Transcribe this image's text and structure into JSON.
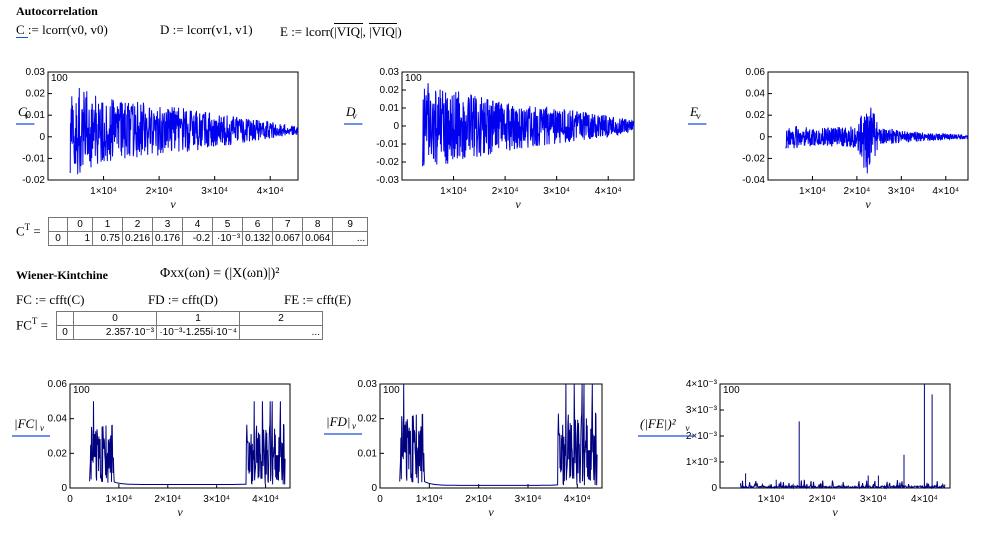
{
  "autocorr": {
    "title": "Autocorrelation",
    "eq_c": "C := lcorr(v0, v0)",
    "eq_d": "D := lcorr(v1, v1)",
    "eq_e_prefix": "E := lcorr(",
    "eq_e_arg": "|VIQ|",
    "eq_e_sep": ",",
    "eq_e_suffix": ")"
  },
  "transpose_table_c": {
    "label": "C",
    "sup": "T",
    "headers": [
      "0",
      "1",
      "2",
      "3",
      "4",
      "5",
      "6",
      "7",
      "8",
      "9"
    ],
    "row_index": "0",
    "cells": [
      "1",
      "0.75",
      "0.216",
      "0.176",
      "-0.2",
      "·10⁻³",
      "0.132",
      "0.067",
      "0.064",
      "..."
    ]
  },
  "wiener": {
    "title": "Wiener-Kintchine",
    "formula": "Φxx(ωn) = (|X(ωn)|)²",
    "eq_fc": "FC := cfft(C)",
    "eq_fd": "FD := cfft(D)",
    "eq_fe": "FE := cfft(E)"
  },
  "transpose_table_fc": {
    "label": "FC",
    "sup": "T",
    "headers": [
      "0",
      "1",
      "2"
    ],
    "row_index": "0",
    "cells": [
      "2.357·10⁻³",
      "·10⁻³-1.255i·10⁻⁴",
      "..."
    ]
  },
  "colors": {
    "line": "#0000ee",
    "dark": "#000080",
    "axis": "#000000",
    "grid": "#808080"
  },
  "chart_data": [
    {
      "id": "C",
      "type": "line",
      "ylabel": "C",
      "ylabel_sub": "ν",
      "xlabel": "ν",
      "marker": "100",
      "ylim": [
        -0.02,
        0.03
      ],
      "xlim": [
        0,
        45000
      ],
      "yticks": [
        "0.03",
        "0.02",
        "0.01",
        "0",
        "-0.01",
        "-0.02"
      ],
      "xticks": [
        "1×10⁴",
        "2×10⁴",
        "3×10⁴",
        "4×10⁴"
      ],
      "envelope": [
        [
          4000,
          0.022
        ],
        [
          10000,
          0.015
        ],
        [
          20000,
          0.012
        ],
        [
          30000,
          0.008
        ],
        [
          40000,
          0.004
        ],
        [
          45000,
          0.002
        ]
      ]
    },
    {
      "id": "D",
      "type": "line",
      "ylabel": "D",
      "ylabel_sub": "ν",
      "xlabel": "ν",
      "marker": "100",
      "ylim": [
        -0.03,
        0.03
      ],
      "xlim": [
        0,
        45000
      ],
      "yticks": [
        "0.03",
        "0.02",
        "0.01",
        "0",
        "-0.01",
        "-0.02",
        "-0.03"
      ],
      "xticks": [
        "1×10⁴",
        "2×10⁴",
        "3×10⁴",
        "4×10⁴"
      ],
      "envelope": [
        [
          4000,
          0.025
        ],
        [
          10000,
          0.02
        ],
        [
          20000,
          0.014
        ],
        [
          30000,
          0.01
        ],
        [
          40000,
          0.006
        ],
        [
          45000,
          0.003
        ]
      ]
    },
    {
      "id": "E",
      "type": "line",
      "ylabel": "E",
      "ylabel_sub": "ν",
      "xlabel": "ν",
      "marker": "",
      "ylim": [
        -0.04,
        0.06
      ],
      "xlim": [
        0,
        45000
      ],
      "yticks": [
        "0.06",
        "0.04",
        "0.02",
        "0",
        "-0.02",
        "-0.04"
      ],
      "xticks": [
        "1×10⁴",
        "2×10⁴",
        "3×10⁴",
        "4×10⁴"
      ],
      "envelope": [
        [
          4000,
          0.012
        ],
        [
          10000,
          0.008
        ],
        [
          20000,
          0.01
        ],
        [
          22500,
          0.04
        ],
        [
          25000,
          0.008
        ],
        [
          35000,
          0.004
        ],
        [
          45000,
          0.002
        ]
      ]
    },
    {
      "id": "FC",
      "type": "line",
      "ylabel": "|FC|",
      "ylabel_sub": "ν",
      "xlabel": "ν",
      "marker": "100",
      "ylim": [
        0,
        0.06
      ],
      "xlim": [
        0,
        45000
      ],
      "yticks": [
        "0.06",
        "0.04",
        "0.02",
        "0"
      ],
      "xticks": [
        "0",
        "1×10⁴",
        "2×10⁴",
        "3×10⁴",
        "4×10⁴"
      ],
      "baseline": 0.002,
      "start": 4000,
      "end": 44000,
      "edge_peak": 0.05
    },
    {
      "id": "FD",
      "type": "line",
      "ylabel": "|FD|",
      "ylabel_sub": "ν",
      "xlabel": "ν",
      "marker": "100",
      "ylim": [
        0,
        0.04
      ],
      "xlim": [
        0,
        45000
      ],
      "yticks": [
        "0.03",
        "0.02",
        "0.01",
        "0"
      ],
      "xticks": [
        "0",
        "1×10⁴",
        "2×10⁴",
        "3×10⁴",
        "4×10⁴"
      ],
      "baseline": 0.001,
      "start": 4000,
      "end": 44000,
      "edge_peak": 0.04
    },
    {
      "id": "FE",
      "type": "line",
      "ylabel": "(|FE|)²",
      "ylabel_sub": "ν",
      "xlabel": "ν",
      "marker": "100",
      "ylim": [
        0,
        0.005
      ],
      "xlim": [
        0,
        45000
      ],
      "yticks": [
        "4×10⁻³",
        "3×10⁻³",
        "2×10⁻³",
        "1×10⁻³",
        "0"
      ],
      "xticks": [
        "1×10⁴",
        "2×10⁴",
        "3×10⁴",
        "4×10⁴"
      ],
      "spikes": [
        [
          15500,
          0.0032
        ],
        [
          40000,
          0.005
        ],
        [
          41500,
          0.0045
        ],
        [
          36000,
          0.0016
        ],
        [
          11000,
          0.0004
        ],
        [
          5000,
          0.0007
        ],
        [
          31000,
          0.0006
        ],
        [
          29000,
          0.0006
        ]
      ]
    }
  ]
}
